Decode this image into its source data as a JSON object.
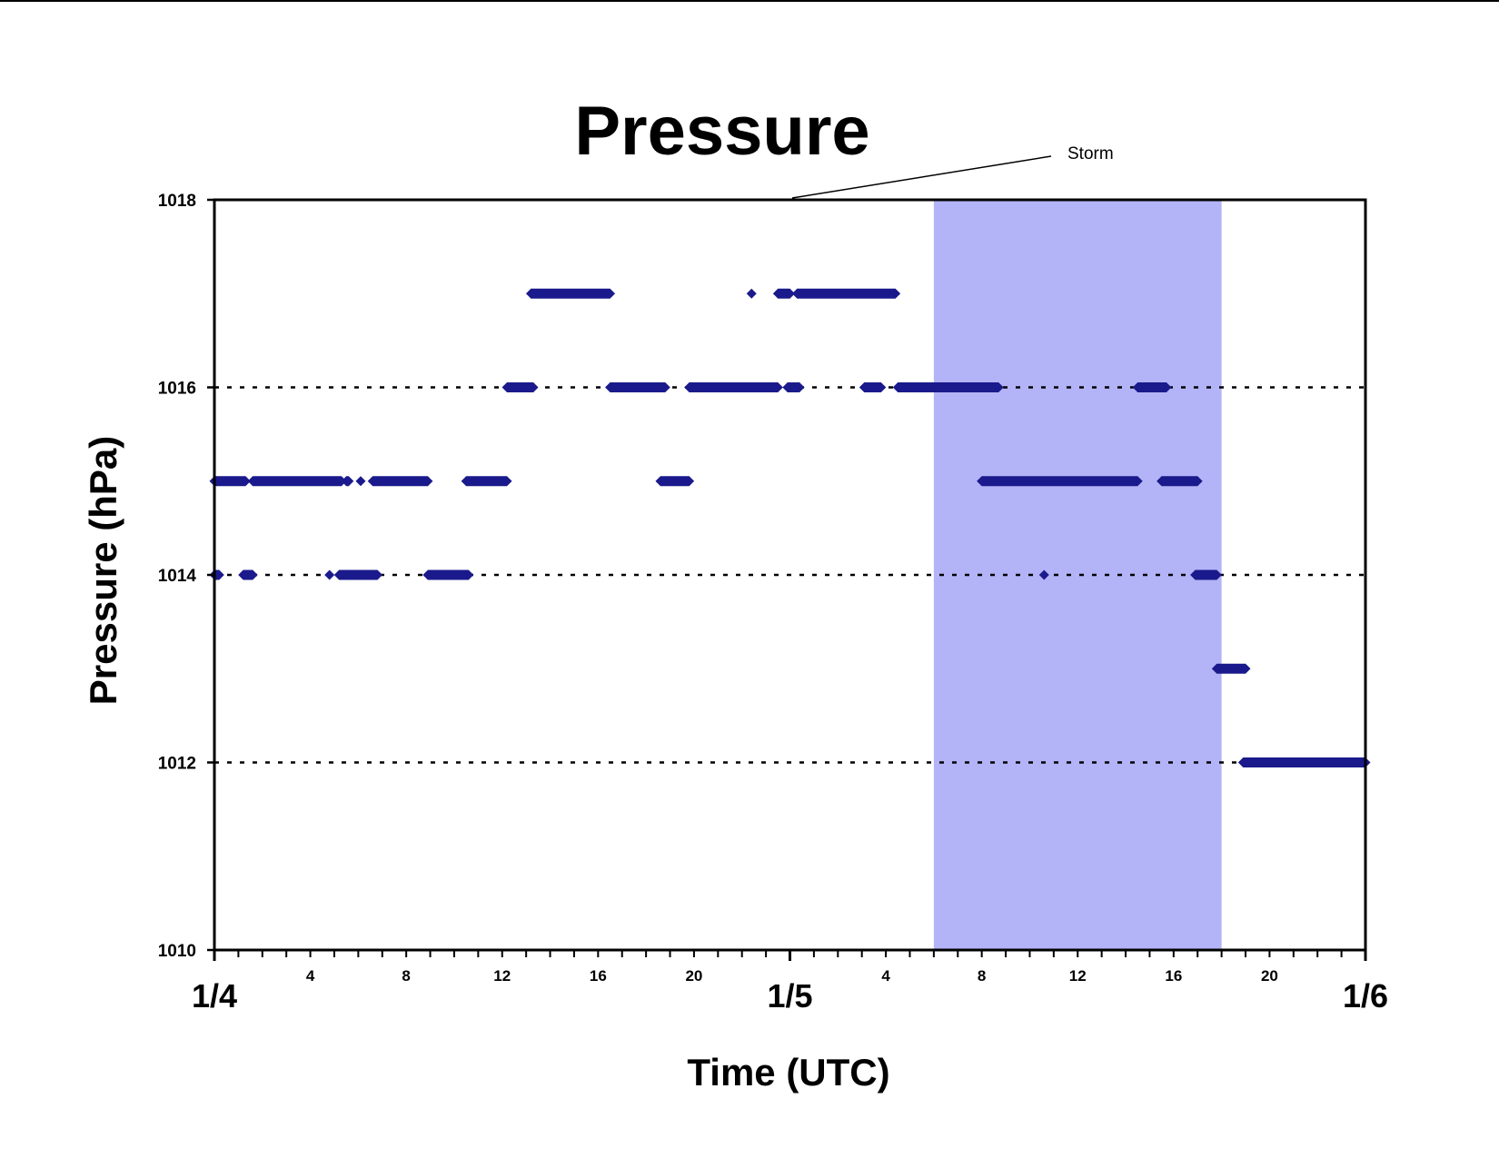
{
  "chart_data": {
    "type": "scatter",
    "title": "Pressure",
    "xlabel": "Time (UTC)",
    "ylabel": "Pressure (hPa)",
    "ylim": [
      1010,
      1018
    ],
    "yticks": [
      "1018",
      "1016",
      "1014",
      "1012",
      "1010"
    ],
    "ygrid": [
      1016,
      1014,
      1012
    ],
    "grid": "dotted horizontal lines at 1012, 1014 and 1016",
    "xlim_hours": [
      0,
      48
    ],
    "x_unit": "hours UTC (1/4 00:00 to 1/6 00:00)",
    "hour_ticks": [
      {
        "label": "4",
        "hour": 4
      },
      {
        "label": "8",
        "hour": 8
      },
      {
        "label": "12",
        "hour": 12
      },
      {
        "label": "16",
        "hour": 16
      },
      {
        "label": "20",
        "hour": 20
      },
      {
        "label": "4",
        "hour": 28
      },
      {
        "label": "8",
        "hour": 32
      },
      {
        "label": "12",
        "hour": 36
      },
      {
        "label": "16",
        "hour": 40
      },
      {
        "label": "20",
        "hour": 44
      }
    ],
    "date_labels": [
      {
        "label": "1/4",
        "hour": 0
      },
      {
        "label": "1/5",
        "hour": 24
      },
      {
        "label": "1/6",
        "hour": 48
      }
    ],
    "storm_band_hours": [
      30,
      42
    ],
    "storm_label": "Storm",
    "segments": [
      {
        "start": 0.0,
        "end": 0.2,
        "value": 1014
      },
      {
        "start": 1.2,
        "end": 1.6,
        "value": 1014
      },
      {
        "start": 4.8,
        "end": 4.8,
        "value": 1014
      },
      {
        "start": 5.2,
        "end": 6.8,
        "value": 1014
      },
      {
        "start": 8.9,
        "end": 10.6,
        "value": 1014
      },
      {
        "start": 0.0,
        "end": 1.3,
        "value": 1015
      },
      {
        "start": 1.6,
        "end": 5.3,
        "value": 1015
      },
      {
        "start": 5.5,
        "end": 5.6,
        "value": 1015
      },
      {
        "start": 6.1,
        "end": 6.1,
        "value": 1015
      },
      {
        "start": 6.6,
        "end": 8.9,
        "value": 1015
      },
      {
        "start": 10.5,
        "end": 12.2,
        "value": 1015
      },
      {
        "start": 18.6,
        "end": 19.8,
        "value": 1015
      },
      {
        "start": 12.2,
        "end": 13.3,
        "value": 1016
      },
      {
        "start": 16.5,
        "end": 18.8,
        "value": 1016
      },
      {
        "start": 19.8,
        "end": 23.5,
        "value": 1016
      },
      {
        "start": 23.9,
        "end": 24.4,
        "value": 1016
      },
      {
        "start": 27.1,
        "end": 27.8,
        "value": 1016
      },
      {
        "start": 28.5,
        "end": 32.1,
        "value": 1016
      },
      {
        "start": 32.1,
        "end": 32.7,
        "value": 1016
      },
      {
        "start": 38.5,
        "end": 39.7,
        "value": 1016
      },
      {
        "start": 13.2,
        "end": 16.5,
        "value": 1017
      },
      {
        "start": 22.4,
        "end": 22.4,
        "value": 1017
      },
      {
        "start": 23.5,
        "end": 24.0,
        "value": 1017
      },
      {
        "start": 24.3,
        "end": 28.4,
        "value": 1017
      },
      {
        "start": 32.0,
        "end": 38.5,
        "value": 1015
      },
      {
        "start": 39.5,
        "end": 41.0,
        "value": 1015
      },
      {
        "start": 34.6,
        "end": 34.6,
        "value": 1014
      },
      {
        "start": 40.9,
        "end": 41.8,
        "value": 1014
      },
      {
        "start": 41.8,
        "end": 43.0,
        "value": 1013
      },
      {
        "start": 42.9,
        "end": 48.0,
        "value": 1012
      }
    ]
  },
  "colors": {
    "marker": "#1a1a8c",
    "storm_band": "#b3b3f7",
    "axes": "#000000"
  }
}
